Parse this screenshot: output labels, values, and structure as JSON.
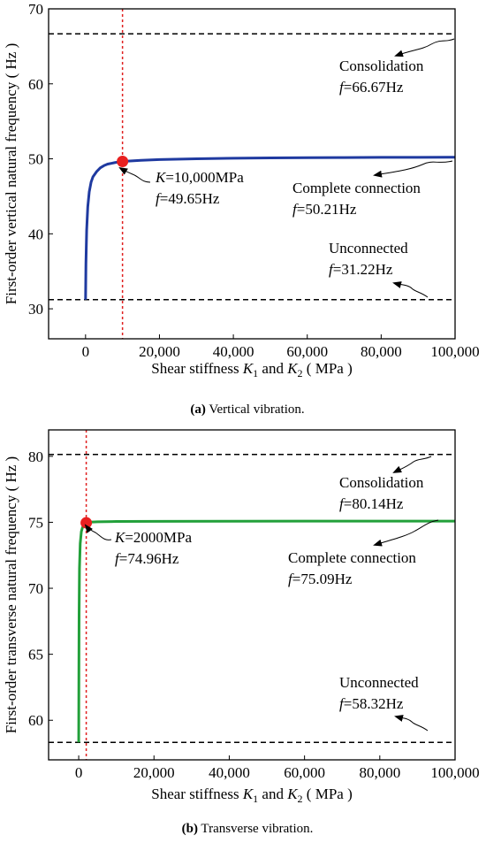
{
  "chart_data": [
    {
      "type": "line",
      "panel": "a",
      "caption_tag": "(a)",
      "caption_text": " Vertical vibration.",
      "ylabel": "First-order vertical natural frequency ( Hz )",
      "xlabel_parts": [
        "Shear stiffness ",
        "K",
        "1",
        " and ",
        "K",
        "2",
        " ( MPa )"
      ],
      "xlim": [
        -10000,
        100000
      ],
      "ylim": [
        26,
        70
      ],
      "xticks": [
        0,
        20000,
        40000,
        60000,
        80000,
        100000
      ],
      "xtick_labels": [
        "0",
        "20,000",
        "40,000",
        "60,000",
        "80,000",
        "100,000"
      ],
      "yticks": [
        30,
        40,
        50,
        60,
        70
      ],
      "ytick_labels": [
        "30",
        "40",
        "50",
        "60",
        "70"
      ],
      "curve_color": "#1f3aa0",
      "curve": {
        "x": [
          0,
          100,
          300,
          600,
          1000,
          1500,
          2000,
          3000,
          4000,
          5000,
          6000,
          8000,
          10000,
          15000,
          20000,
          30000,
          40000,
          50000,
          60000,
          70000,
          80000,
          90000,
          100000
        ],
        "y": [
          31.22,
          36.0,
          40.5,
          43.6,
          45.6,
          46.9,
          47.6,
          48.3,
          48.8,
          49.1,
          49.3,
          49.5,
          49.65,
          49.8,
          49.9,
          50.0,
          50.08,
          50.12,
          50.15,
          50.17,
          50.19,
          50.2,
          50.21
        ]
      },
      "reference_lines": [
        {
          "name": "Consolidation",
          "y": 66.67
        },
        {
          "name": "Unconnected",
          "y": 31.22
        }
      ],
      "vertical_marker_x": 10000,
      "highlight_point": {
        "x": 10000,
        "y": 49.65
      },
      "annotations": [
        {
          "id": "consolidation",
          "line1": "Consolidation",
          "line2_var": "f",
          "line2_val": "=66.67Hz"
        },
        {
          "id": "complete",
          "line1": "Complete connection",
          "line2_var": "f",
          "line2_val": "=50.21Hz"
        },
        {
          "id": "unconnected",
          "line1": "Unconnected",
          "line2_var": "f",
          "line2_val": "=31.22Hz"
        },
        {
          "id": "point",
          "line1_var": "K",
          "line1_val": "=10,000MPa",
          "line2_var": "f",
          "line2_val": "=49.65Hz"
        }
      ]
    },
    {
      "type": "line",
      "panel": "b",
      "caption_tag": "(b)",
      "caption_text": " Transverse vibration.",
      "ylabel": "First-order transverse natural frequency ( Hz )",
      "xlabel_parts": [
        "Shear stiffness ",
        "K",
        "1",
        " and ",
        "K",
        "2",
        " ( MPa )"
      ],
      "xlim": [
        -8000,
        100000
      ],
      "ylim": [
        57,
        82
      ],
      "xticks": [
        0,
        20000,
        40000,
        60000,
        80000,
        100000
      ],
      "xtick_labels": [
        "0",
        "20,000",
        "40,000",
        "60,000",
        "80,000",
        "100,000"
      ],
      "yticks": [
        60,
        65,
        70,
        75,
        80
      ],
      "ytick_labels": [
        "60",
        "65",
        "70",
        "75",
        "80"
      ],
      "curve_color": "#22a03a",
      "curve": {
        "x": [
          0,
          50,
          100,
          200,
          400,
          700,
          1000,
          1500,
          2000,
          3000,
          5000,
          10000,
          20000,
          40000,
          60000,
          80000,
          100000
        ],
        "y": [
          58.32,
          64.0,
          68.0,
          71.5,
          73.4,
          74.3,
          74.6,
          74.85,
          74.96,
          75.01,
          75.04,
          75.06,
          75.07,
          75.08,
          75.085,
          75.09,
          75.09
        ]
      },
      "reference_lines": [
        {
          "name": "Consolidation",
          "y": 80.14
        },
        {
          "name": "Unconnected",
          "y": 58.32
        }
      ],
      "vertical_marker_x": 2000,
      "highlight_point": {
        "x": 2000,
        "y": 74.96
      },
      "annotations": [
        {
          "id": "consolidation",
          "line1": "Consolidation",
          "line2_var": "f",
          "line2_val": "=80.14Hz"
        },
        {
          "id": "complete",
          "line1": "Complete connection",
          "line2_var": "f",
          "line2_val": "=75.09Hz"
        },
        {
          "id": "unconnected",
          "line1": "Unconnected",
          "line2_var": "f",
          "line2_val": "=58.32Hz"
        },
        {
          "id": "point",
          "line1_var": "K",
          "line1_val": "=2000MPa",
          "line2_var": "f",
          "line2_val": "=74.96Hz"
        }
      ]
    }
  ]
}
